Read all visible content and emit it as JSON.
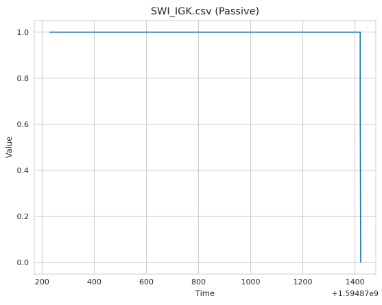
{
  "chart_data": {
    "type": "line",
    "title": "SWI_IGK.csv (Passive)",
    "xlabel": "Time",
    "ylabel": "Value",
    "x_offset_label": "+1.59487e9",
    "xlim": [
      170,
      1480
    ],
    "ylim": [
      -0.05,
      1.05
    ],
    "xticks": [
      200,
      400,
      600,
      800,
      1000,
      1200,
      1400
    ],
    "yticks": [
      0.0,
      0.2,
      0.4,
      0.6,
      0.8,
      1.0
    ],
    "xtick_labels": [
      "200",
      "400",
      "600",
      "800",
      "1000",
      "1200",
      "1400"
    ],
    "ytick_labels": [
      "0.0",
      "0.2",
      "0.4",
      "0.6",
      "0.8",
      "1.0"
    ],
    "grid": true,
    "line_color": "#1f77b4",
    "series": [
      {
        "x": [
          228,
          1420,
          1420,
          1422
        ],
        "y": [
          1.0,
          1.0,
          0.7,
          0.0
        ]
      }
    ]
  }
}
